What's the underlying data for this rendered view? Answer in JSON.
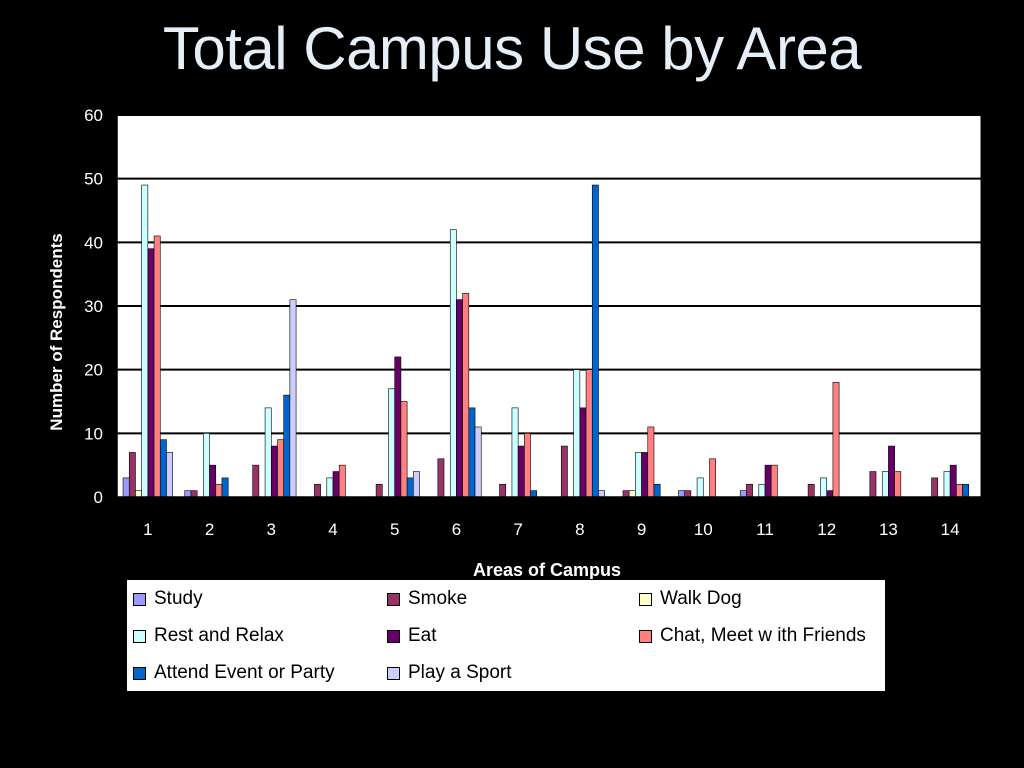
{
  "slide": {
    "title": "Total Campus Use by Area"
  },
  "chart_data": {
    "type": "bar",
    "title": "",
    "xlabel": "Areas of Campus",
    "ylabel": "Number of Respondents",
    "ylim": [
      0,
      60
    ],
    "yticks": [
      0,
      10,
      20,
      30,
      40,
      50,
      60
    ],
    "grid": true,
    "legend_position": "bottom",
    "categories": [
      "1",
      "2",
      "3",
      "4",
      "5",
      "6",
      "7",
      "8",
      "9",
      "10",
      "11",
      "12",
      "13",
      "14"
    ],
    "series": [
      {
        "name": "Study",
        "color": "#9999ff",
        "values": [
          3,
          1,
          0,
          0,
          0,
          0,
          0,
          0,
          0,
          1,
          1,
          0,
          0,
          0
        ]
      },
      {
        "name": "Smoke",
        "color": "#993366",
        "values": [
          7,
          1,
          5,
          2,
          2,
          6,
          2,
          8,
          1,
          1,
          2,
          2,
          4,
          3
        ]
      },
      {
        "name": "Walk Dog",
        "color": "#ffffcc",
        "values": [
          1,
          0,
          0,
          0,
          0,
          0,
          0,
          0,
          1,
          0,
          0,
          0,
          0,
          0
        ]
      },
      {
        "name": "Rest and Relax",
        "color": "#ccffff",
        "values": [
          49,
          10,
          14,
          3,
          17,
          42,
          14,
          20,
          7,
          3,
          2,
          3,
          4,
          4
        ]
      },
      {
        "name": "Eat",
        "color": "#660066",
        "values": [
          39,
          5,
          8,
          4,
          22,
          31,
          8,
          14,
          7,
          0,
          5,
          1,
          8,
          5
        ]
      },
      {
        "name": "Chat, Meet w ith Friends",
        "color": "#ff8080",
        "values": [
          41,
          2,
          9,
          5,
          15,
          32,
          10,
          20,
          11,
          6,
          5,
          18,
          4,
          2
        ]
      },
      {
        "name": "Attend Event or Party",
        "color": "#0066cc",
        "values": [
          9,
          3,
          16,
          0,
          3,
          14,
          1,
          49,
          2,
          0,
          0,
          0,
          0,
          2
        ]
      },
      {
        "name": "Play a Sport",
        "color": "#ccccff",
        "values": [
          7,
          0,
          31,
          0,
          4,
          11,
          0,
          1,
          0,
          0,
          0,
          0,
          0,
          0
        ]
      }
    ]
  }
}
